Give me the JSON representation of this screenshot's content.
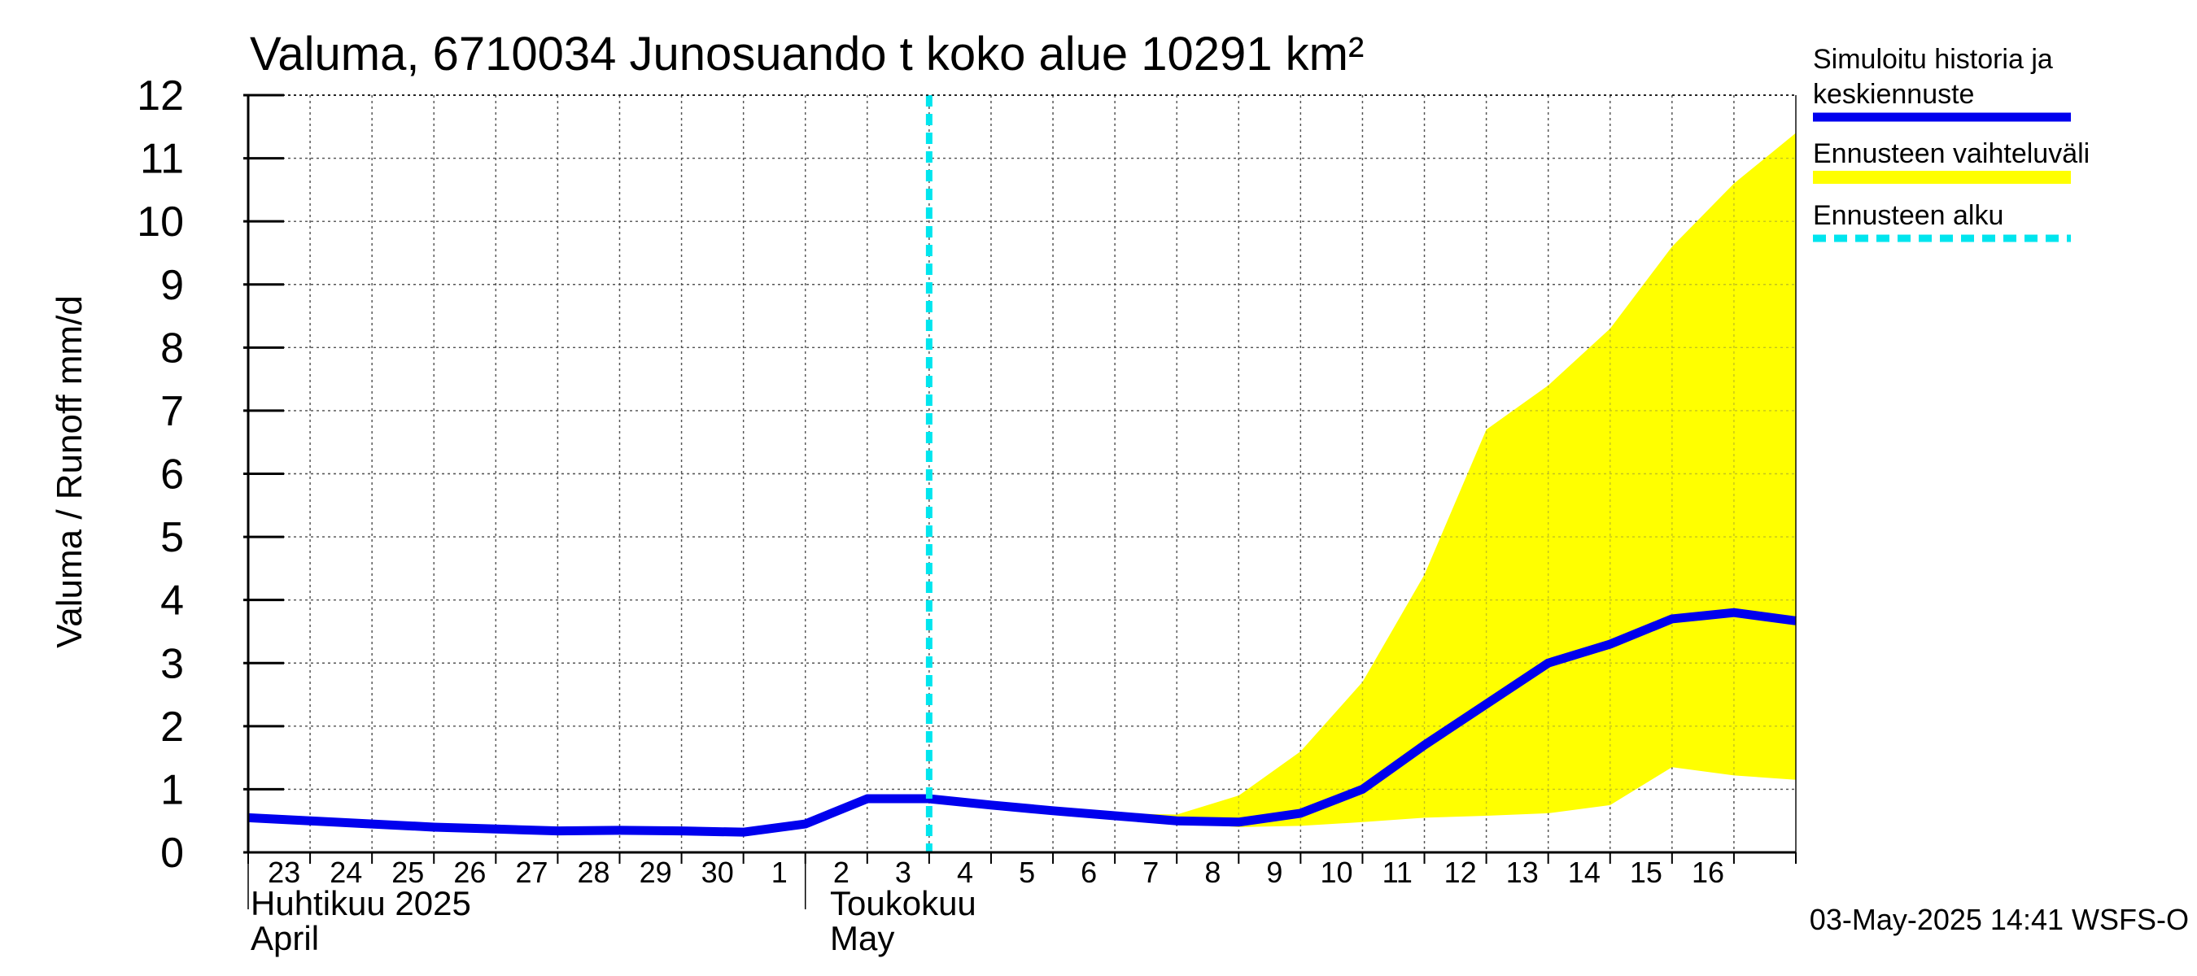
{
  "chart_data": {
    "type": "area",
    "title": "Valuma, 6710034 Junosuando t koko alue 10291 km²",
    "ylabel": "Valuma / Runoff    mm/d",
    "ylim": [
      0,
      12
    ],
    "yticks": [
      "0",
      "1",
      "2",
      "3",
      "4",
      "5",
      "6",
      "7",
      "8",
      "9",
      "10",
      "11",
      "12"
    ],
    "grid": true,
    "legend_position": "right",
    "x_day_ticks": [
      "23",
      "24",
      "25",
      "26",
      "27",
      "28",
      "29",
      "30",
      "1",
      "2",
      "3",
      "4",
      "5",
      "6",
      "7",
      "8",
      "9",
      "10",
      "11",
      "12",
      "13",
      "14",
      "15",
      "16"
    ],
    "month_labels": [
      {
        "line1": "Huhtikuu  2025",
        "line2": "April"
      },
      {
        "line1": "Toukokuu",
        "line2": "May"
      }
    ],
    "forecast_start": "2025-05-03",
    "series": [
      {
        "name": "Simuloitu historia ja keskiennuste",
        "color": "#0000ee",
        "x": [
          "2025-04-22",
          "2025-04-23",
          "2025-04-24",
          "2025-04-25",
          "2025-04-26",
          "2025-04-27",
          "2025-04-28",
          "2025-04-29",
          "2025-04-30",
          "2025-05-01",
          "2025-05-02",
          "2025-05-03",
          "2025-05-04",
          "2025-05-05",
          "2025-05-06",
          "2025-05-07",
          "2025-05-08",
          "2025-05-09",
          "2025-05-10",
          "2025-05-11",
          "2025-05-12",
          "2025-05-13",
          "2025-05-14",
          "2025-05-15",
          "2025-05-16",
          "2025-05-17"
        ],
        "y": [
          0.55,
          0.5,
          0.45,
          0.4,
          0.37,
          0.34,
          0.35,
          0.34,
          0.32,
          0.45,
          0.85,
          0.85,
          0.75,
          0.66,
          0.58,
          0.5,
          0.48,
          0.62,
          1.0,
          1.7,
          2.35,
          3.0,
          3.3,
          3.7,
          3.8,
          3.67
        ]
      },
      {
        "name": "Ennusteen vaihteluväli",
        "color": "#ffff00",
        "x": [
          "2025-05-03",
          "2025-05-04",
          "2025-05-05",
          "2025-05-06",
          "2025-05-07",
          "2025-05-08",
          "2025-05-09",
          "2025-05-10",
          "2025-05-11",
          "2025-05-12",
          "2025-05-13",
          "2025-05-14",
          "2025-05-15",
          "2025-05-16",
          "2025-05-17"
        ],
        "upper": [
          0.86,
          0.8,
          0.7,
          0.62,
          0.6,
          0.9,
          1.6,
          2.7,
          4.4,
          6.7,
          7.4,
          8.3,
          9.6,
          10.6,
          11.4
        ],
        "lower": [
          0.84,
          0.72,
          0.62,
          0.55,
          0.48,
          0.4,
          0.42,
          0.48,
          0.55,
          0.58,
          0.62,
          0.75,
          1.35,
          1.22,
          1.15
        ]
      }
    ],
    "legend": [
      {
        "line1": "Simuloitu historia ja",
        "line2": "keskiennuste",
        "color": "#0000ee",
        "style": "solid"
      },
      {
        "line1": "Ennusteen vaihteluväli",
        "line2": "",
        "color": "#ffff00",
        "style": "band"
      },
      {
        "line1": "Ennusteen alku",
        "line2": "",
        "color": "#00e5ee",
        "style": "dashed"
      }
    ],
    "timestamp": "03-May-2025 14:41 WSFS-O"
  }
}
